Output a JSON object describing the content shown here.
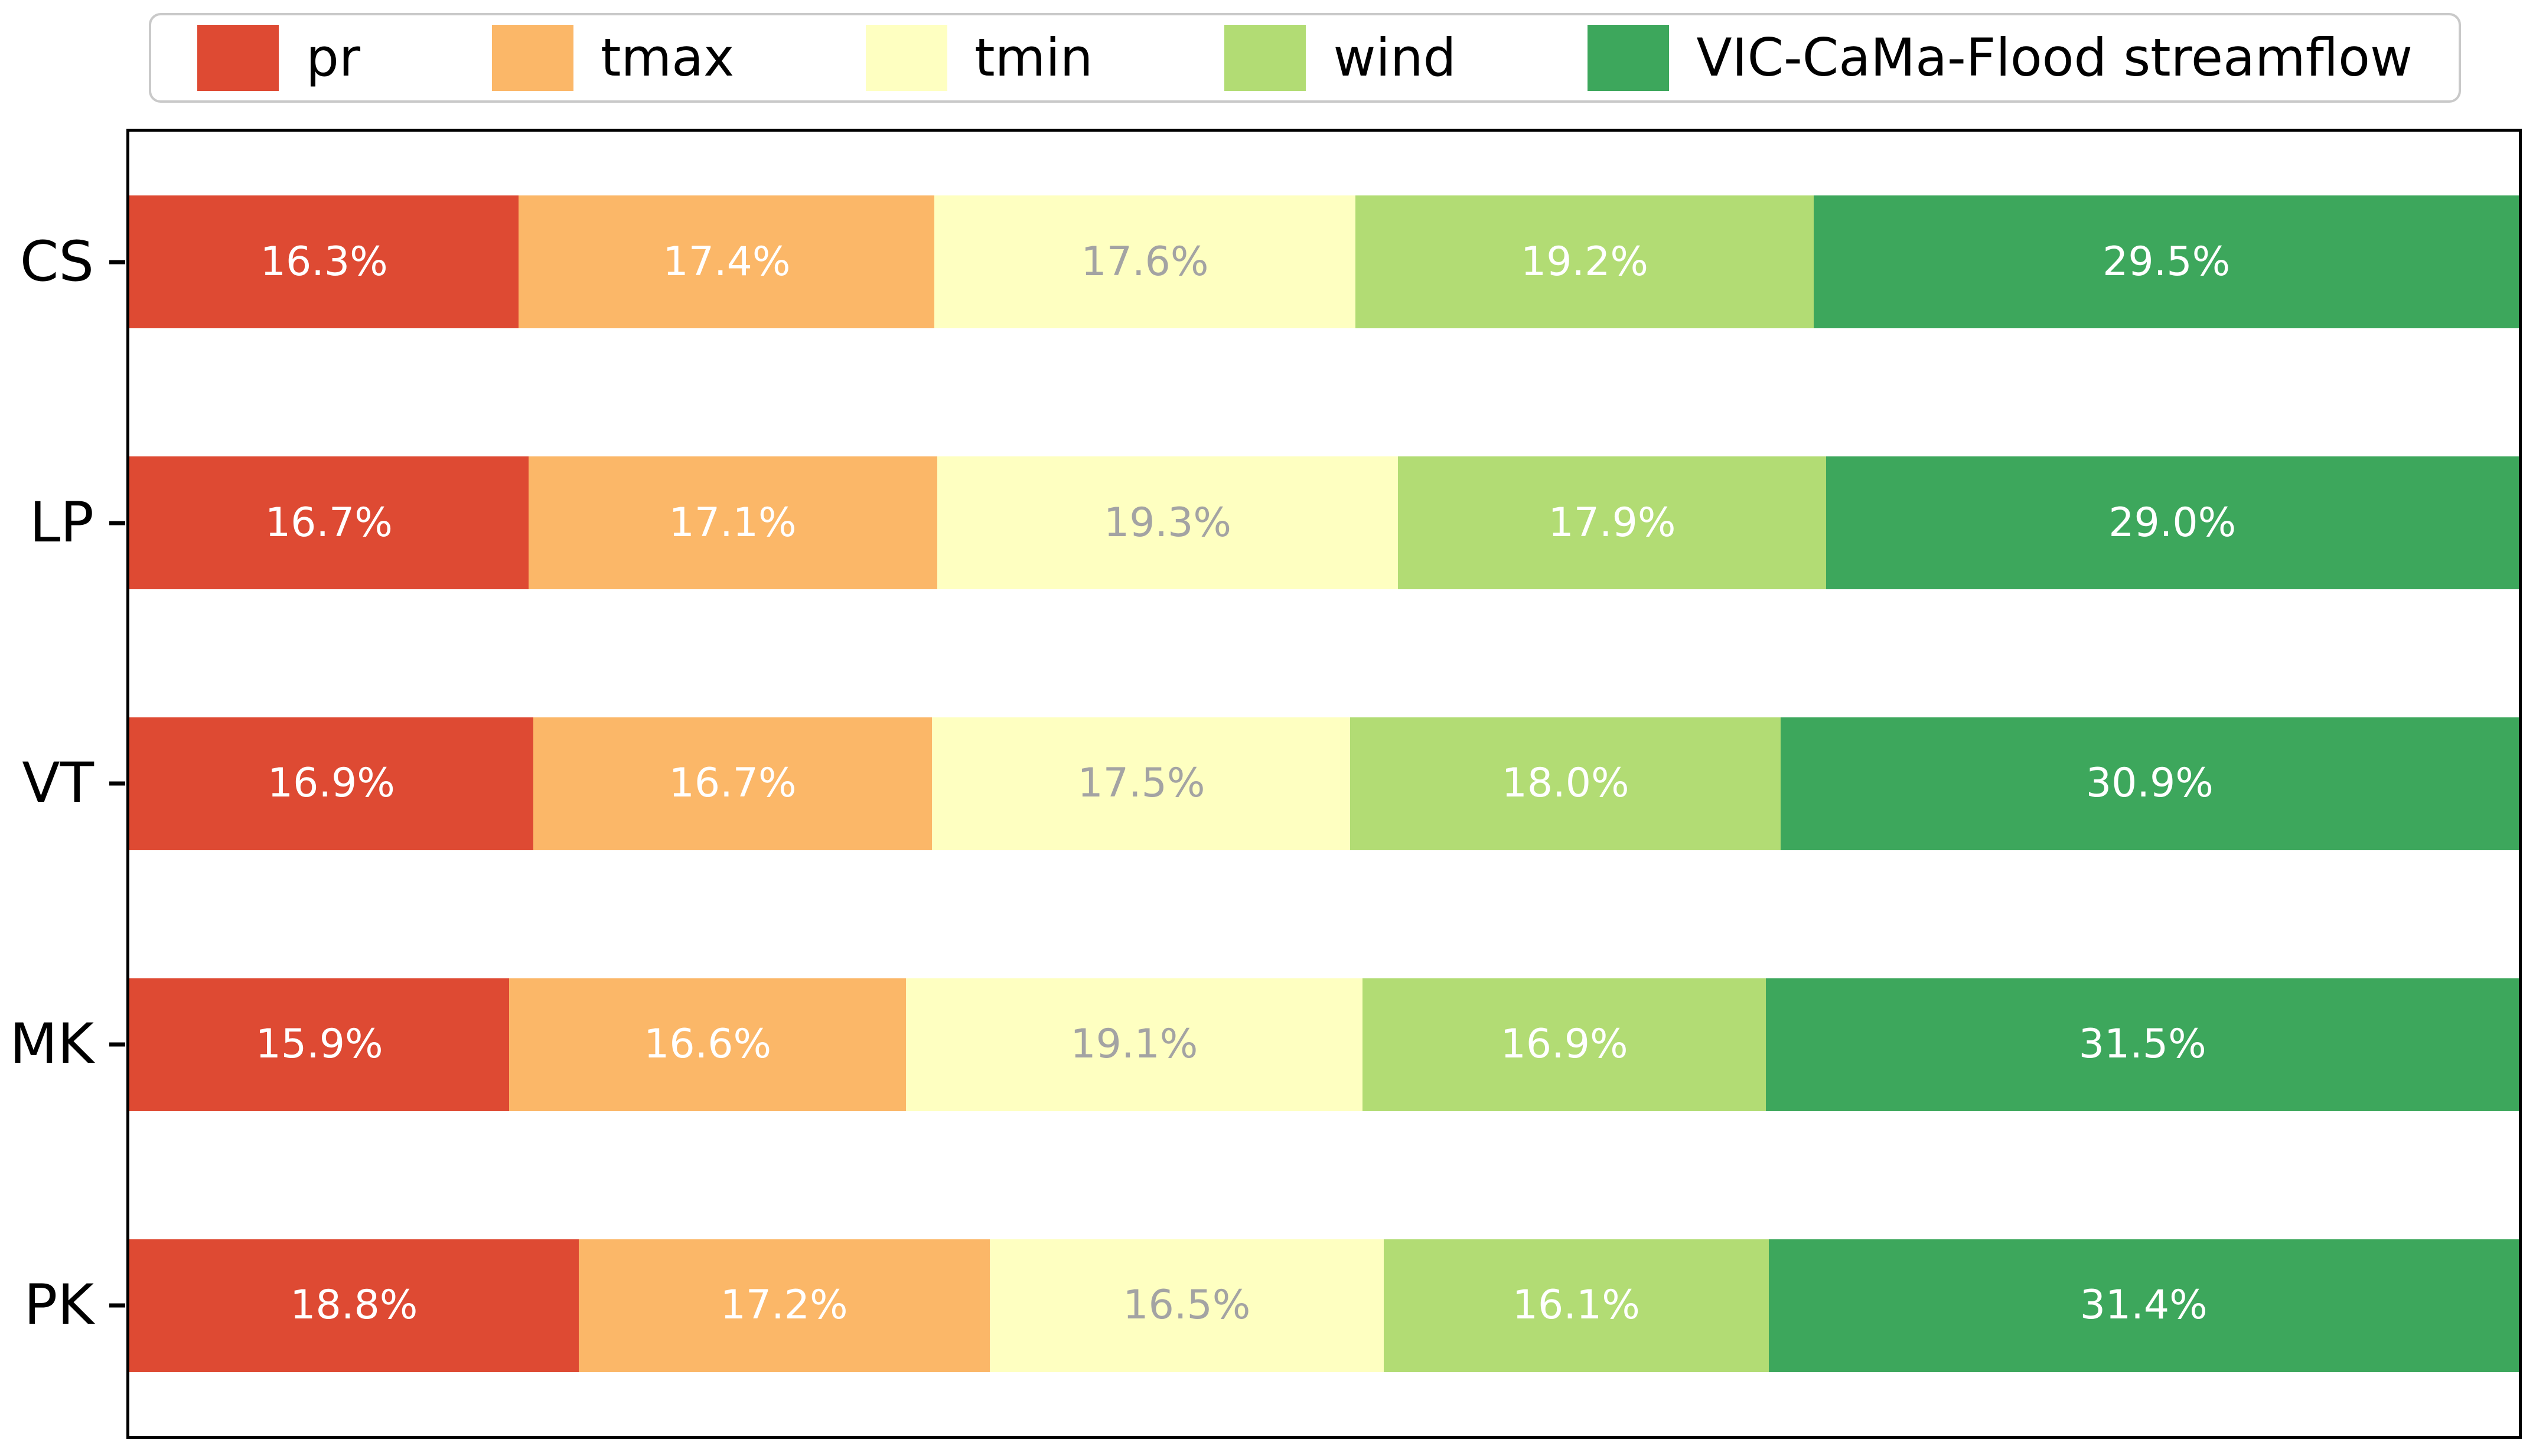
{
  "chart_data": {
    "type": "bar",
    "orientation": "horizontal",
    "stacked": true,
    "title": "",
    "xlabel": "",
    "ylabel": "",
    "xlim": [
      0,
      100
    ],
    "grid": false,
    "value_suffix": "%",
    "legend_position": "top",
    "categories": [
      "CS",
      "LP",
      "VT",
      "MK",
      "PK"
    ],
    "series": [
      {
        "name": "pr",
        "color": "#de4a33",
        "label_color": "#ffffff",
        "values": [
          16.3,
          16.7,
          16.9,
          15.9,
          18.8
        ]
      },
      {
        "name": "tmax",
        "color": "#fbb768",
        "label_color": "#ffffff",
        "values": [
          17.4,
          17.1,
          16.7,
          16.6,
          17.2
        ]
      },
      {
        "name": "tmin",
        "color": "#feffc1",
        "label_color": "#a3a3a3",
        "values": [
          17.6,
          19.3,
          17.5,
          19.1,
          16.5
        ]
      },
      {
        "name": "wind",
        "color": "#b2dc74",
        "label_color": "#ffffff",
        "values": [
          19.2,
          17.9,
          18.0,
          16.9,
          16.1
        ]
      },
      {
        "name": "VIC-CaMa-Flood streamflow",
        "color": "#3da75c",
        "label_color": "#ffffff",
        "values": [
          29.5,
          29.0,
          30.9,
          31.5,
          31.4
        ]
      }
    ],
    "row_labels": {
      "CS": [
        "16.3%",
        "17.4%",
        "17.6%",
        "19.2%",
        "29.5%"
      ],
      "LP": [
        "16.7%",
        "17.1%",
        "19.3%",
        "17.9%",
        "29.0%"
      ],
      "VT": [
        "16.9%",
        "16.7%",
        "17.5%",
        "18.0%",
        "30.9%"
      ],
      "MK": [
        "15.9%",
        "16.6%",
        "19.1%",
        "16.9%",
        "31.5%"
      ],
      "PK": [
        "18.8%",
        "17.2%",
        "16.5%",
        "16.1%",
        "31.4%"
      ]
    }
  },
  "legend": {
    "items": [
      "pr",
      "tmax",
      "tmin",
      "wind",
      "VIC-CaMa-Flood streamflow"
    ]
  }
}
